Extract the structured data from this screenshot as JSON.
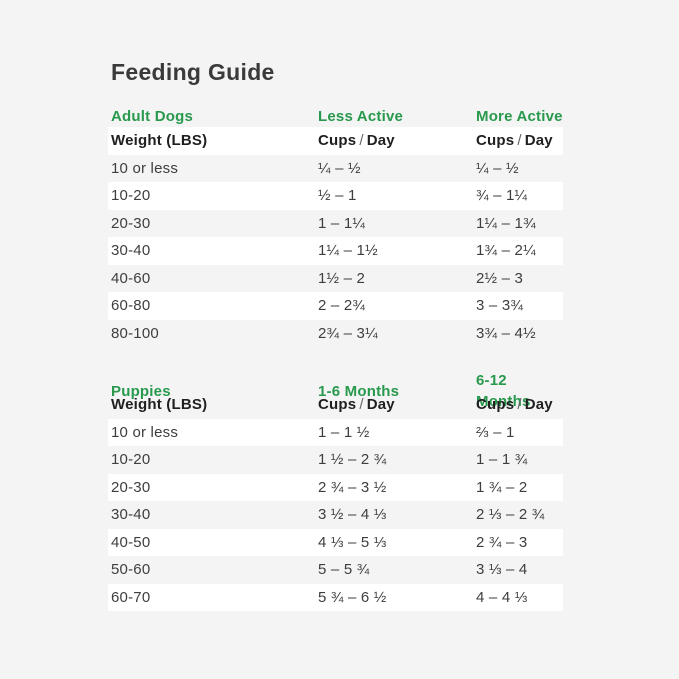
{
  "page": {
    "title": "Feeding Guide",
    "background_color": "#f4f4f4",
    "stripe_color": "#ffffff",
    "accent_green": "#28994d",
    "text_dark": "#1f1f1f",
    "text_body": "#3e3e3e"
  },
  "chart_data": [
    {
      "type": "table",
      "section_title": "Adult Dogs",
      "col2_header": "Less Active",
      "col3_header": "More Active",
      "weight_header": "Weight (LBS)",
      "cups": {
        "cups": "Cups",
        "slash": "/",
        "day": "Day"
      },
      "header_white": true,
      "rows": [
        {
          "weight": "10 or less",
          "col2": "¼ – ½",
          "col3": "¼ – ½",
          "white": false
        },
        {
          "weight": "10-20",
          "col2": "½ – 1",
          "col3": "¾ – 1¼",
          "white": true
        },
        {
          "weight": "20-30",
          "col2": "1 – 1¼",
          "col3": "1¼ – 1¾",
          "white": false
        },
        {
          "weight": "30-40",
          "col2": "1¼ – 1½",
          "col3": "1¾ – 2¼",
          "white": true
        },
        {
          "weight": "40-60",
          "col2": "1½ – 2",
          "col3": "2½ – 3",
          "white": false
        },
        {
          "weight": "60-80",
          "col2": "2 – 2¾",
          "col3": "3 – 3¾",
          "white": true
        },
        {
          "weight": "80-100",
          "col2": "2¾ – 3¼",
          "col3": "3¾ – 4½",
          "white": false
        }
      ]
    },
    {
      "type": "table",
      "section_title": "Puppies",
      "col2_header": "1-6 Months",
      "col3_header": "6-12 Months",
      "weight_header": "Weight (LBS)",
      "cups": {
        "cups": "Cups",
        "slash": "/",
        "day": "Day"
      },
      "header_white": false,
      "rows": [
        {
          "weight": "10 or less",
          "col2": "1 – 1 ½",
          "col3": "⅔ – 1",
          "white": true
        },
        {
          "weight": "10-20",
          "col2": "1 ½ – 2 ¾",
          "col3": "1 – 1 ¾",
          "white": false
        },
        {
          "weight": "20-30",
          "col2": "2 ¾ – 3 ½",
          "col3": "1 ¾ – 2",
          "white": true
        },
        {
          "weight": "30-40",
          "col2": "3 ½ – 4 ⅓",
          "col3": "2 ⅓ – 2 ¾",
          "white": false
        },
        {
          "weight": "40-50",
          "col2": "4 ⅓ – 5 ⅓",
          "col3": "2 ¾ – 3",
          "white": true
        },
        {
          "weight": "50-60",
          "col2": "5 – 5 ¾",
          "col3": "3 ⅓ – 4",
          "white": false
        },
        {
          "weight": "60-70",
          "col2": "5 ¾ – 6 ½",
          "col3": "4 – 4 ⅓",
          "white": true
        }
      ]
    }
  ]
}
